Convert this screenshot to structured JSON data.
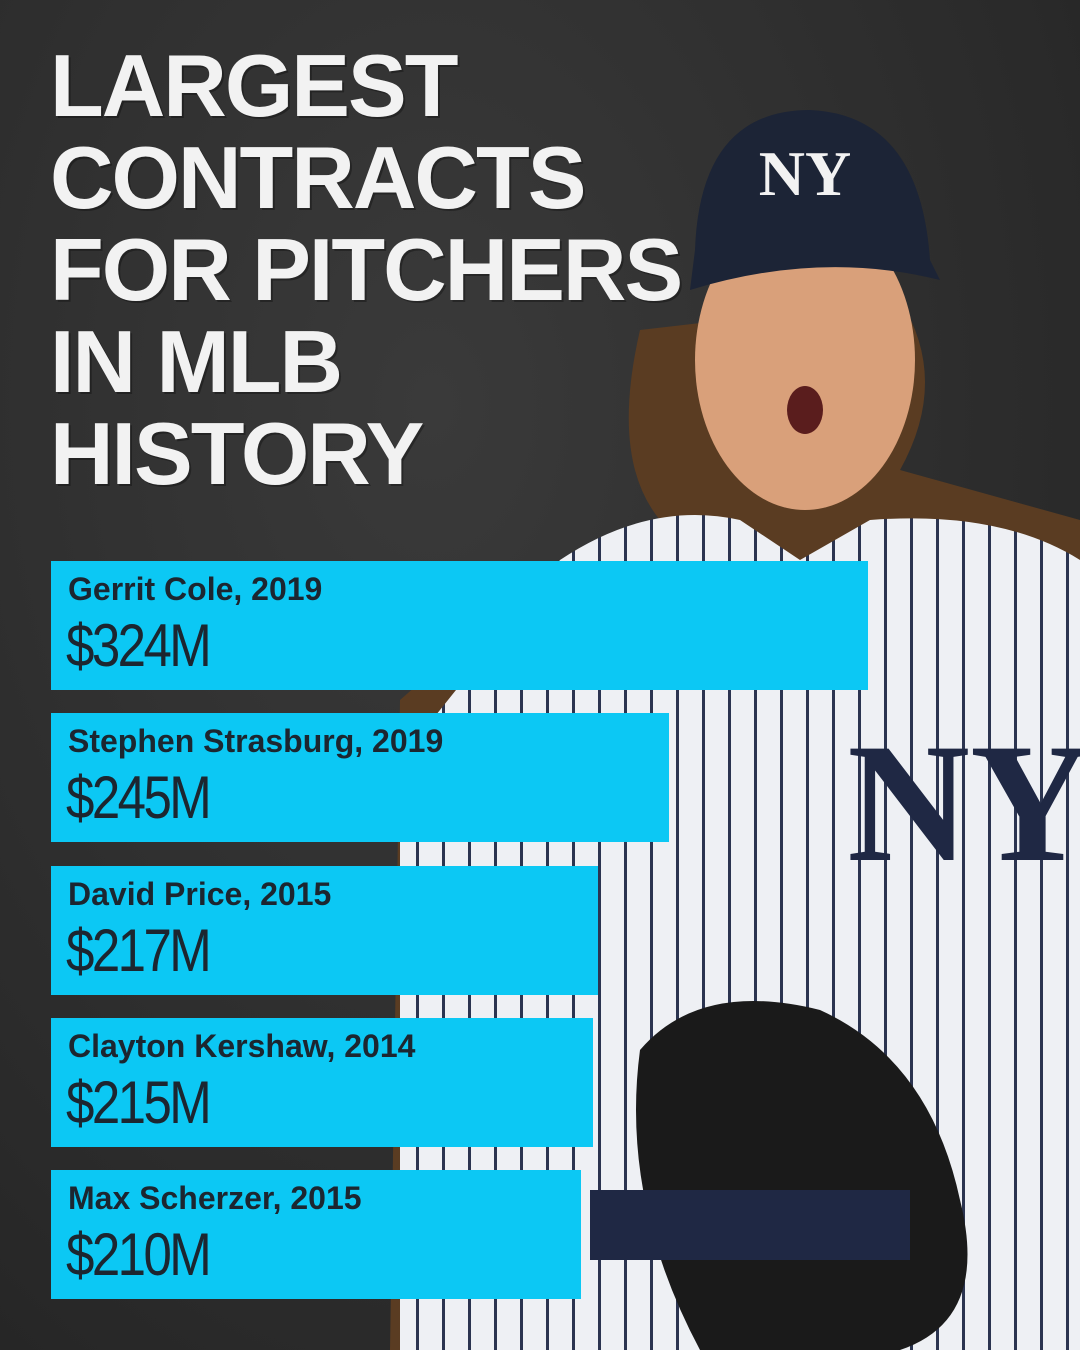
{
  "chart_data": {
    "type": "bar",
    "orientation": "horizontal",
    "title": "LARGEST CONTRACTS FOR PITCHERS IN MLB HISTORY",
    "categories": [
      "Gerrit Cole, 2019",
      "Stephen Strasburg, 2019",
      "David Price, 2015",
      "Clayton Kershaw, 2014",
      "Max Scherzer, 2015"
    ],
    "values": [
      324,
      245,
      217,
      215,
      210
    ],
    "value_labels": [
      "$324M",
      "$245M",
      "$217M",
      "$215M",
      "$210M"
    ],
    "color": "#0cc8f4"
  }
}
